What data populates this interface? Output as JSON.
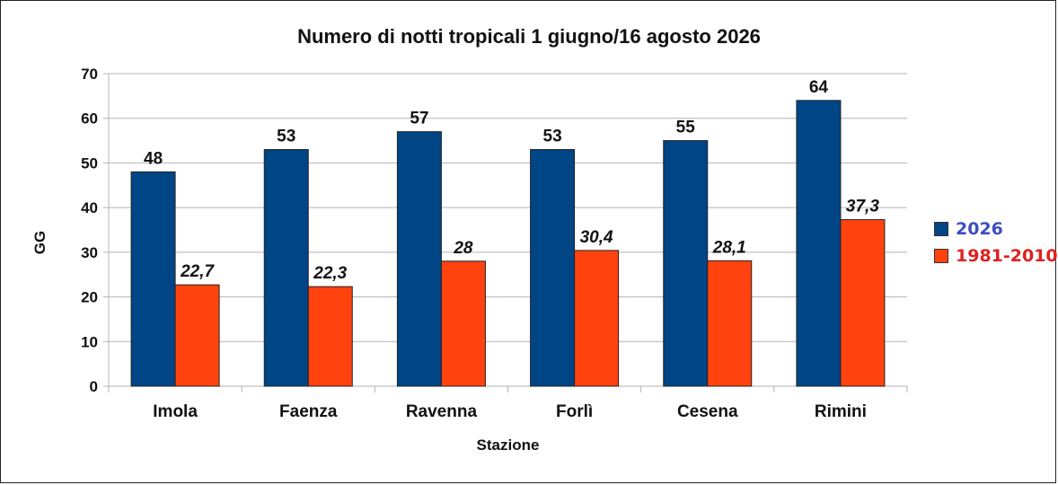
{
  "chart_data": {
    "type": "bar",
    "title": "Numero di notti tropicali 1 giugno/16 agosto 2026",
    "xlabel": "Stazione",
    "ylabel": "GG",
    "ylim": [
      0,
      70
    ],
    "yticks": [
      0,
      10,
      20,
      30,
      40,
      50,
      60,
      70
    ],
    "grid": true,
    "legend_position": "right",
    "categories": [
      "Imola",
      "Faenza",
      "Ravenna",
      "Forlì",
      "Cesena",
      "Rimini"
    ],
    "series": [
      {
        "name": "2026",
        "color": "#004586",
        "legend_text_color": "#3d4ec0",
        "values": [
          48,
          53,
          57,
          53,
          55,
          64
        ],
        "labels": [
          "48",
          "53",
          "57",
          "53",
          "55",
          "64"
        ]
      },
      {
        "name": "1981-2010",
        "color": "#ff420e",
        "legend_text_color": "#e02020",
        "values": [
          22.7,
          22.3,
          28,
          30.4,
          28.1,
          37.3
        ],
        "labels": [
          "22,7",
          "22,3",
          "28",
          "30,4",
          "28,1",
          "37,3"
        ]
      }
    ]
  }
}
